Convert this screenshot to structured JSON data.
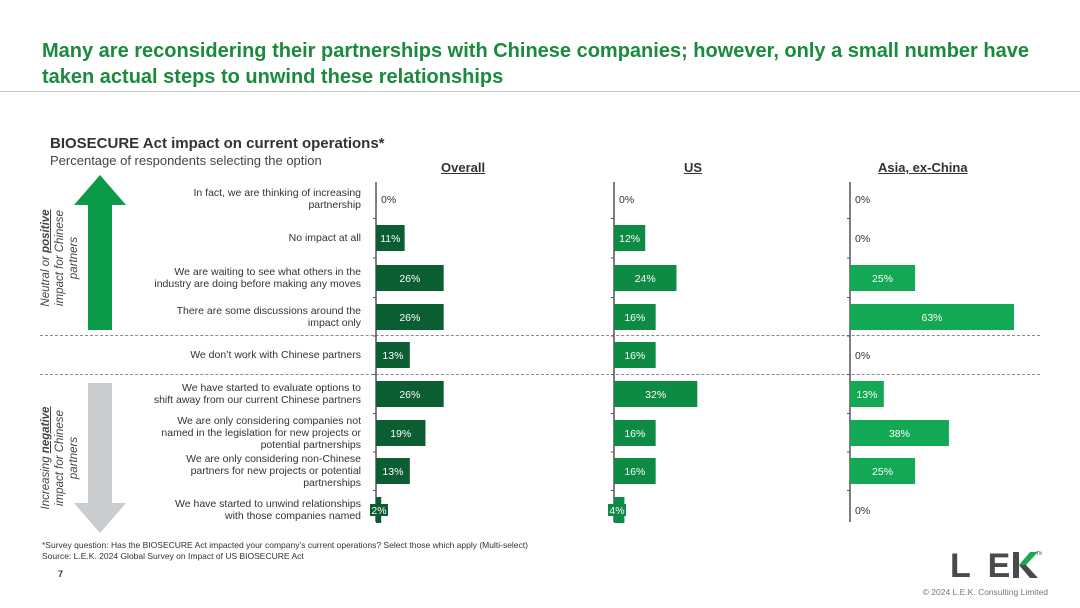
{
  "slide": {
    "title": "Many are reconsidering their partnerships with Chinese companies; however, only a small number have taken actual steps to unwind these relationships",
    "page_number": "7",
    "copyright": "© 2024 L.E.K. Consulting Limited",
    "logo_text": "LEK"
  },
  "left_arrows": {
    "top_label_line1_pre": "Neutral or ",
    "top_label_line1_emph": "positive",
    "top_label_line2": "impact for Chinese",
    "top_label_line3": "partners",
    "bottom_label_line1_pre": "Increasing ",
    "bottom_label_line1_emph": "negative",
    "bottom_label_line2": "impact for Chinese",
    "bottom_label_line3": "partners",
    "colors": {
      "up": "#0a9a48",
      "down": "#c9cdd0"
    }
  },
  "footnotes": {
    "survey": "*Survey question: Has the BIOSECURE Act impacted your company’s current operations? Select those which apply (Multi-select)",
    "source": "Source:  L.E.K. 2024 Global Survey on Impact of US BIOSECURE Act"
  },
  "chart_data": {
    "type": "bar",
    "orientation": "horizontal",
    "title": "BIOSECURE Act impact on current operations*",
    "subtitle": "Percentage of respondents selecting the option",
    "categories": [
      [
        "In fact, we are thinking of increasing",
        "partnership"
      ],
      [
        "No impact at all"
      ],
      [
        "We are waiting to see what others in the",
        "industry are doing before making any moves"
      ],
      [
        "There are some discussions around the",
        "impact only"
      ],
      [
        "We don’t work with Chinese partners"
      ],
      [
        "We have started to evaluate options to",
        "shift away from our current Chinese partners"
      ],
      [
        "We are only considering companies not",
        "named in the legislation for new projects or",
        "potential partnerships"
      ],
      [
        "We are only considering non-Chinese",
        "partners for new projects or potential",
        "partnerships"
      ],
      [
        "We have started to unwind relationships",
        "with those companies named"
      ]
    ],
    "unit": "%",
    "xlim": [
      0,
      63
    ],
    "series": [
      {
        "name": "Overall",
        "color": "#0a5e32",
        "values": [
          0,
          11,
          26,
          26,
          13,
          26,
          19,
          13,
          2
        ]
      },
      {
        "name": "US",
        "color": "#0d8a44",
        "values": [
          0,
          12,
          24,
          16,
          16,
          32,
          16,
          16,
          4
        ]
      },
      {
        "name": "Asia, ex-China",
        "color": "#12a854",
        "values": [
          0,
          0,
          25,
          63,
          0,
          13,
          38,
          25,
          0
        ]
      }
    ],
    "grid": false,
    "legend": "panel-headers"
  }
}
